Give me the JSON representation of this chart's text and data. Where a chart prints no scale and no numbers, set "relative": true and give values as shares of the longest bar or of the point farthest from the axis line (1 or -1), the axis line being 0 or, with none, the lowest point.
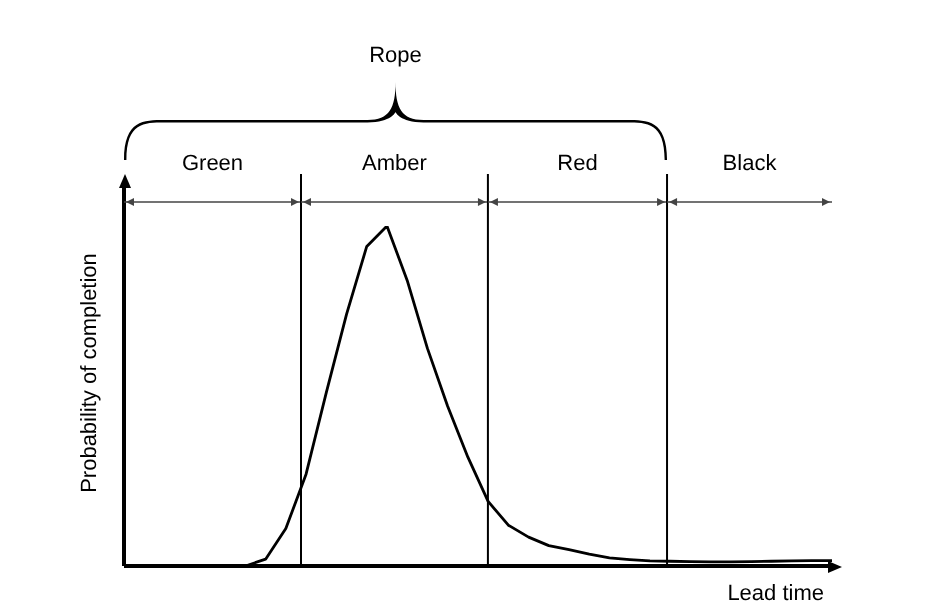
{
  "chart_data": {
    "type": "line",
    "relative": true,
    "xlabel": "Lead time",
    "ylabel": "Probability of completion",
    "annotations": [
      "Rope",
      "Green",
      "Amber",
      "Red",
      "Black"
    ],
    "marker": "none",
    "line_style": "solid",
    "categories": [
      null,
      null,
      null,
      null,
      null,
      null,
      null,
      null,
      null,
      null,
      null,
      null,
      null,
      null,
      null,
      null,
      null,
      null,
      null,
      null,
      null,
      null,
      null,
      null,
      null,
      null,
      null,
      null,
      null,
      null,
      null,
      null,
      null,
      null,
      null,
      null
    ],
    "series": [
      {
        "color": "#000000",
        "values": [
          0,
          0,
          0,
          0,
          0,
          0,
          0,
          0.02,
          0.11,
          0.27,
          0.51,
          0.74,
          0.94,
          1.0,
          0.84,
          0.64,
          0.47,
          0.32,
          0.19,
          0.12,
          0.085,
          0.06,
          0.048,
          0.035,
          0.024,
          0.019,
          0.015,
          0.014,
          0.013,
          0.012,
          0.012,
          0.013,
          0.014,
          0.015,
          0.016,
          0.016
        ]
      }
    ]
  }
}
